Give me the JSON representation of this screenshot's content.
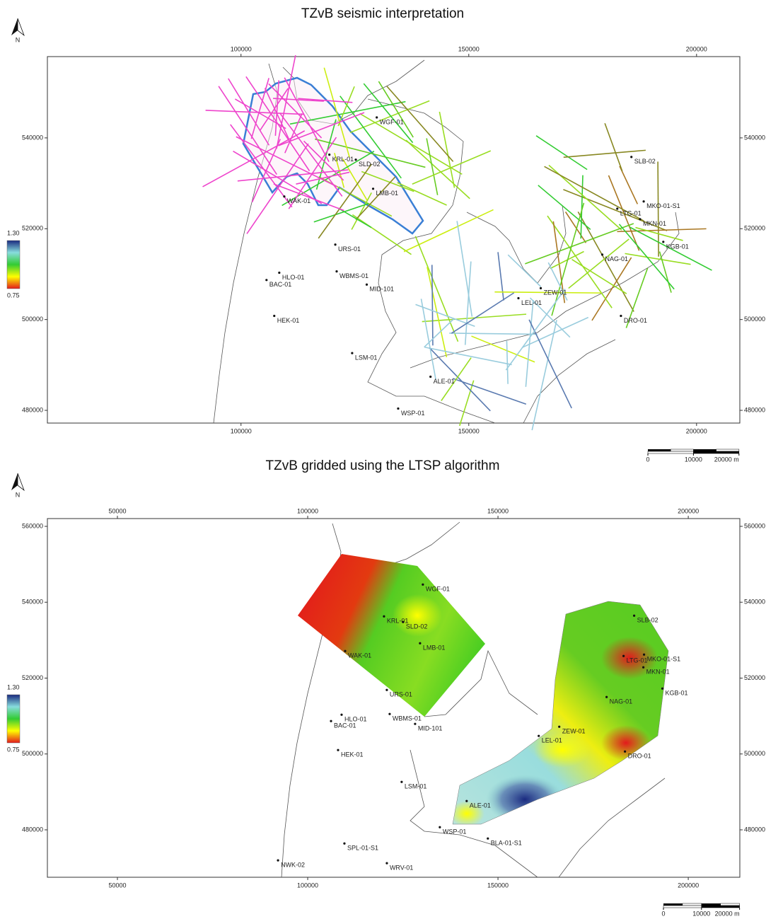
{
  "maps": [
    {
      "title": "TZvB seismic interpretation",
      "north": "N",
      "xlim": [
        57500,
        209500
      ],
      "ylim": [
        477200,
        557900
      ],
      "xticks": [
        100000,
        150000,
        200000
      ],
      "yticks": [
        480000,
        500000,
        520000,
        540000
      ],
      "colorbar": {
        "ticks": [
          {
            "value": 1.3,
            "label": "1.30"
          },
          {
            "value": 0.75,
            "label": "0.75"
          }
        ],
        "colors": [
          "#e31a1c",
          "#ffff00",
          "#33cc33",
          "#88dddd",
          "#1a2a80"
        ]
      },
      "scalebar": [
        0,
        10000,
        {
          "value": 20000,
          "label": "20000 m"
        }
      ],
      "wells": [
        {
          "name": "WGF-01",
          "x": 129800,
          "y": 544500
        },
        {
          "name": "KRL-01",
          "x": 119400,
          "y": 536300
        },
        {
          "name": "SLD-02",
          "x": 125200,
          "y": 535200
        },
        {
          "name": "LMB-01",
          "x": 129000,
          "y": 528800
        },
        {
          "name": "WAK-01",
          "x": 109500,
          "y": 527100
        },
        {
          "name": "URS-01",
          "x": 120700,
          "y": 516500
        },
        {
          "name": "HLO-01",
          "x": 108400,
          "y": 510300
        },
        {
          "name": "BAC-01",
          "x": 105600,
          "y": 508700
        },
        {
          "name": "WBMS-01",
          "x": 121000,
          "y": 510600
        },
        {
          "name": "MID-101",
          "x": 127600,
          "y": 507700
        },
        {
          "name": "HEK-01",
          "x": 107300,
          "y": 500800
        },
        {
          "name": "LSM-01",
          "x": 124400,
          "y": 492600
        },
        {
          "name": "ALE-01",
          "x": 141600,
          "y": 487400
        },
        {
          "name": "WSP-01",
          "x": 134500,
          "y": 480400
        },
        {
          "name": "LEL-01",
          "x": 160900,
          "y": 504700
        },
        {
          "name": "ZEW-01",
          "x": 165800,
          "y": 506900
        },
        {
          "name": "SLB-02",
          "x": 185700,
          "y": 535800
        },
        {
          "name": "LTG-01",
          "x": 182600,
          "y": 524400
        },
        {
          "name": "MKO-01-S1",
          "x": 188400,
          "y": 526000
        },
        {
          "name": "MKN-01",
          "x": 187600,
          "y": 522100
        },
        {
          "name": "KGB-01",
          "x": 192700,
          "y": 517100
        },
        {
          "name": "NAG-01",
          "x": 179300,
          "y": 514300
        },
        {
          "name": "DRO-01",
          "x": 183400,
          "y": 500800
        }
      ]
    },
    {
      "title": "TZvB gridded using the LTSP algorithm",
      "north": "N",
      "xlim": [
        31600,
        213550
      ],
      "ylim": [
        467500,
        562050
      ],
      "xticks": [
        50000,
        100000,
        150000,
        200000
      ],
      "yticks": [
        480000,
        500000,
        520000,
        540000,
        560000
      ],
      "colorbar": {
        "ticks": [
          {
            "value": 1.3,
            "label": "1.30"
          },
          {
            "value": 0.75,
            "label": "0.75"
          }
        ],
        "colors": [
          "#e31a1c",
          "#ffff00",
          "#33cc33",
          "#88dddd",
          "#1a2a80"
        ]
      },
      "scalebar": [
        0,
        10000,
        {
          "value": 20000,
          "label": "20000 m"
        }
      ],
      "wells": [
        {
          "name": "WGF-01",
          "x": 130260,
          "y": 544660
        },
        {
          "name": "KRL-01",
          "x": 120050,
          "y": 536270
        },
        {
          "name": "SLD-02",
          "x": 125060,
          "y": 534780
        },
        {
          "name": "LMB-01",
          "x": 129520,
          "y": 529180
        },
        {
          "name": "WAK-01",
          "x": 109840,
          "y": 527130
        },
        {
          "name": "URS-01",
          "x": 120790,
          "y": 516880
        },
        {
          "name": "HLO-01",
          "x": 108910,
          "y": 510350
        },
        {
          "name": "BAC-01",
          "x": 106130,
          "y": 508670
        },
        {
          "name": "WBMS-01",
          "x": 121540,
          "y": 510540
        },
        {
          "name": "MID-101",
          "x": 128220,
          "y": 507930
        },
        {
          "name": "HEK-01",
          "x": 107980,
          "y": 501030
        },
        {
          "name": "LSM-01",
          "x": 124690,
          "y": 492630
        },
        {
          "name": "ALE-01",
          "x": 141770,
          "y": 487600
        },
        {
          "name": "WSP-01",
          "x": 134720,
          "y": 480700
        },
        {
          "name": "BLA-01-S1",
          "x": 147340,
          "y": 477720
        },
        {
          "name": "SPL-01-S1",
          "x": 109650,
          "y": 476410
        },
        {
          "name": "NWK-02",
          "x": 92200,
          "y": 471950
        },
        {
          "name": "WRV-01",
          "x": 120800,
          "y": 471200
        },
        {
          "name": "LEL-01",
          "x": 160710,
          "y": 504760
        },
        {
          "name": "ZEW-01",
          "x": 166100,
          "y": 507180
        },
        {
          "name": "SLB-02",
          "x": 185780,
          "y": 536460
        },
        {
          "name": "LTG-01",
          "x": 183000,
          "y": 525830
        },
        {
          "name": "MKO-01-S1",
          "x": 188380,
          "y": 526200
        },
        {
          "name": "MKN-01",
          "x": 188200,
          "y": 522840
        },
        {
          "name": "KGB-01",
          "x": 193200,
          "y": 517250
        },
        {
          "name": "NAG-01",
          "x": 178540,
          "y": 515010
        },
        {
          "name": "DRO-01",
          "x": 183370,
          "y": 500650
        }
      ]
    }
  ]
}
